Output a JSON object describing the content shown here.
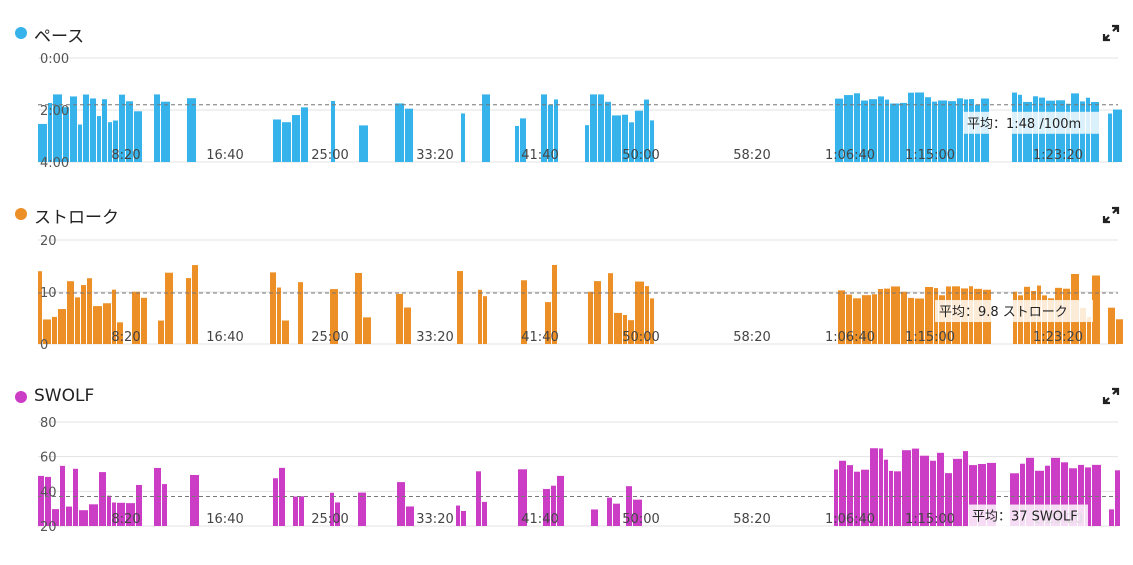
{
  "panels": [
    {
      "label": "ペース",
      "color": "#35b3ea",
      "average_label": "平均：1:48 /100m",
      "expand_icon": "expand-icon"
    },
    {
      "label": "ストローク",
      "color": "#ec8f26",
      "average_label": "平均：9.8 ストローク",
      "expand_icon": "expand-icon"
    },
    {
      "label": "SWOLF",
      "color": "#cc3dc6",
      "average_label": "平均：37 SWOLF",
      "expand_icon": "expand-icon"
    }
  ],
  "chart_data": [
    {
      "type": "bar",
      "name": "ペース",
      "x_unit": "seconds",
      "xlim": [
        0,
        5640
      ],
      "x_ticks": [
        "8:20",
        "16:40",
        "25:00",
        "33:20",
        "41:40",
        "50:00",
        "58:20",
        "1:06:40",
        "1:15:00",
        "1:23:20"
      ],
      "y_ticks": [
        "0:00",
        "2:00",
        "4:00"
      ],
      "ylim": [
        0,
        240
      ],
      "y_inverted": true,
      "average": 108,
      "bars": [
        [
          0,
          110,
          150
        ],
        [
          110,
          180,
          165
        ],
        [
          180,
          260,
          160
        ],
        [
          260,
          310,
          80
        ],
        [
          310,
          360,
          115
        ],
        [
          360,
          410,
          100
        ],
        [
          410,
          460,
          75
        ],
        [
          460,
          510,
          110
        ],
        [
          510,
          560,
          100
        ],
        [
          560,
          610,
          85
        ],
        [
          610,
          660,
          155
        ],
        [
          660,
          700,
          95
        ],
        [
          700,
          750,
          140
        ],
        [
          750,
          800,
          70
        ],
        [
          800,
          850,
          105
        ],
        [
          850,
          910,
          100
        ],
        [
          910,
          960,
          60
        ],
        [
          960,
          1010,
          90
        ],
        [
          1010,
          1060,
          200
        ],
        [
          1060,
          1120,
          240
        ],
        [
          1120,
          1220,
          240
        ],
        [
          1220,
          1270,
          80
        ],
        [
          1270,
          1330,
          105
        ],
        [
          1330,
          1390,
          240
        ],
        [
          1390,
          1450,
          240
        ],
        [
          1450,
          1520,
          75
        ],
        [
          1520,
          1580,
          130
        ],
        [
          1580,
          1700,
          240
        ],
        [
          1700,
          1740,
          240
        ],
        [
          1740,
          1800,
          240
        ],
        [
          1800,
          1870,
          90
        ],
        [
          1870,
          1920,
          240
        ],
        [
          1920,
          1990,
          240
        ],
        [
          1990,
          2050,
          80
        ],
        [
          2050,
          2140,
          240
        ],
        [
          2140,
          2200,
          240
        ],
        [
          2200,
          2260,
          90
        ],
        [
          2260,
          2350,
          240
        ],
        [
          2350,
          2450,
          240
        ],
        [
          2450,
          2530,
          55
        ],
        [
          2530,
          2590,
          240
        ],
        [
          2590,
          2730,
          240
        ],
        [
          2730,
          2800,
          90
        ],
        [
          2800,
          2950,
          240
        ],
        [
          2950,
          3000,
          240
        ],
        [
          3000,
          3110,
          95
        ],
        [
          3110,
          3220,
          240
        ],
        [
          3220,
          3290,
          240
        ],
        [
          3290,
          3400,
          240
        ],
        [
          3400,
          3500,
          240
        ],
        [
          3500,
          3560,
          240
        ],
        [
          3560,
          3680,
          240
        ],
        [
          3680,
          3750,
          240
        ],
        [
          3750,
          3790,
          240
        ],
        [
          3790,
          3870,
          240
        ],
        [
          3870,
          3910,
          240
        ],
        [
          3910,
          3950,
          240
        ],
        [
          3950,
          4000,
          240
        ],
        [
          4000,
          4060,
          240
        ],
        [
          4060,
          4140,
          240
        ],
        [
          4140,
          4210,
          240
        ],
        [
          4210,
          4260,
          240
        ],
        [
          4260,
          4320,
          240
        ],
        [
          4320,
          4400,
          240
        ],
        [
          4400,
          4480,
          240
        ]
      ]
    },
    {
      "type": "bar",
      "name": "ストローク",
      "x_ticks": [
        "8:20",
        "16:40",
        "25:00",
        "33:20",
        "41:40",
        "50:00",
        "58:20",
        "1:06:40",
        "1:15:00",
        "1:23:20"
      ],
      "y_ticks": [
        "20",
        "10",
        "0"
      ],
      "ylim": [
        0,
        20
      ],
      "average": 9.8
    },
    {
      "type": "bar",
      "name": "SWOLF",
      "x_ticks": [
        "8:20",
        "16:40",
        "25:00",
        "33:20",
        "41:40",
        "50:00",
        "58:20",
        "1:06:40",
        "1:15:00",
        "1:23:20"
      ],
      "y_ticks": [
        "80",
        "60",
        "40",
        "20"
      ],
      "ylim": [
        20,
        80
      ],
      "average": 37
    }
  ],
  "series": {
    "pace_sec": [
      [
        0,
        0,
        137
      ],
      [
        1,
        1,
        150
      ],
      [
        2,
        2,
        155
      ],
      [
        3,
        3,
        150
      ],
      [
        4,
        4,
        150
      ],
      [
        5,
        5,
        120
      ],
      [
        6,
        6,
        100
      ],
      [
        7,
        7,
        125
      ],
      [
        8,
        8,
        128
      ],
      [
        9,
        9,
        95
      ],
      [
        10,
        10,
        130
      ],
      [
        11,
        11,
        160
      ],
      [
        12,
        12,
        90
      ],
      [
        13,
        13,
        105
      ],
      [
        14,
        14,
        120
      ],
      [
        15,
        15,
        143
      ],
      [
        16,
        16,
        145
      ],
      [
        17,
        17,
        100
      ],
      [
        18,
        18,
        105
      ],
      [
        19,
        19,
        135
      ],
      [
        20,
        20,
        115
      ],
      [
        21,
        21,
        120
      ],
      [
        22,
        22,
        85
      ],
      [
        23,
        23,
        110
      ],
      [
        24,
        24,
        105
      ],
      [
        25,
        25,
        110
      ],
      [
        26,
        26,
        90
      ],
      [
        27,
        27,
        110
      ],
      [
        28,
        28,
        200
      ],
      [
        29,
        29,
        150
      ],
      [
        30,
        30,
        190
      ],
      [
        31,
        31,
        150
      ],
      [
        32,
        32,
        180
      ],
      [
        33,
        33,
        85
      ],
      [
        34,
        34,
        60
      ],
      [
        35,
        35,
        160
      ],
      [
        36,
        36,
        110
      ],
      [
        37,
        37,
        110
      ],
      [
        38,
        38,
        115
      ],
      [
        39,
        39,
        105
      ],
      [
        40,
        40,
        100
      ],
      [
        41,
        41,
        95
      ],
      [
        42,
        42,
        90
      ],
      [
        43,
        43,
        105
      ],
      [
        44,
        44,
        110
      ],
      [
        45,
        45,
        110
      ],
      [
        46,
        46,
        95
      ],
      [
        47,
        47,
        90
      ],
      [
        48,
        48,
        110
      ],
      [
        49,
        49,
        100
      ],
      [
        50,
        50,
        125
      ],
      [
        51,
        51,
        120
      ],
      [
        52,
        52,
        110
      ],
      [
        53,
        53,
        105
      ],
      [
        54,
        54,
        100
      ],
      [
        55,
        55,
        110
      ],
      [
        56,
        56,
        100
      ],
      [
        57,
        57,
        98
      ],
      [
        58,
        58,
        100
      ],
      [
        59,
        59,
        105
      ],
      [
        60,
        60,
        110
      ],
      [
        61,
        61,
        103
      ],
      [
        62,
        62,
        108
      ],
      [
        63,
        63,
        118
      ],
      [
        64,
        64,
        102
      ],
      [
        65,
        65,
        98
      ],
      [
        66,
        66,
        103
      ],
      [
        67,
        67,
        105
      ],
      [
        68,
        68,
        102
      ],
      [
        69,
        69,
        104
      ],
      [
        70,
        70,
        108
      ],
      [
        71,
        71,
        110
      ],
      [
        72,
        72,
        125
      ],
      [
        73,
        73,
        135
      ]
    ]
  }
}
